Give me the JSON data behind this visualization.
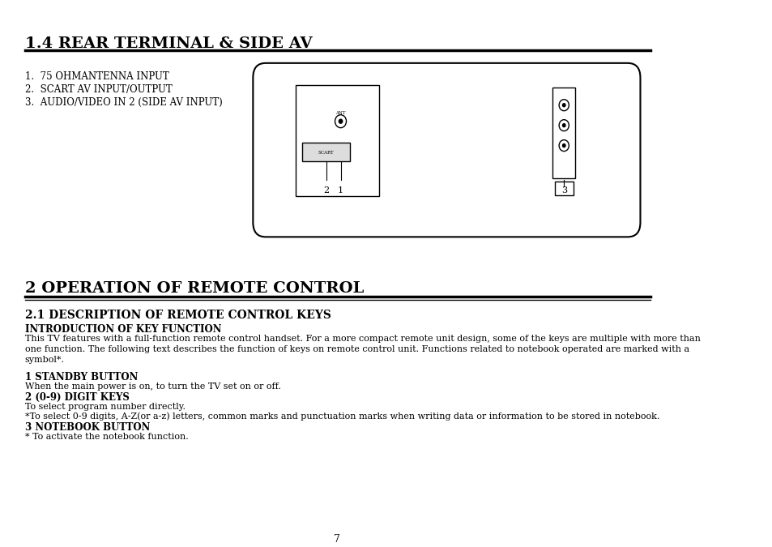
{
  "bg_color": "#ffffff",
  "section1_title": "1.4 REAR TERMINAL & SIDE AV",
  "section1_items": [
    "1.  75 OHMANTENNA INPUT",
    "2.  SCART AV INPUT/OUTPUT",
    "3.  AUDIO/VIDEO IN 2 (SIDE AV INPUT)"
  ],
  "section2_title": "2 OPERATION OF REMOTE CONTROL",
  "subsection2_1": "2.1 DESCRIPTION OF REMOTE CONTROL KEYS",
  "intro_bold": "INTRODUCTION OF KEY FUNCTION",
  "intro_text_1": "This TV features with a full-function remote control handset. For a more compact remote unit design, some of the keys are multiple with more than",
  "intro_text_2": "one function. The following text describes the function of keys on remote control unit. Functions related to notebook operated are marked with a",
  "intro_text_3": "symbol*.",
  "standby_bold": "1 STANDBY BUTTON",
  "standby_text": "When the main power is on, to turn the TV set on or off.",
  "digit_bold": "2 (0-9) DIGIT KEYS",
  "digit_text_1": "To select program number directly.",
  "digit_text_2": "*To select 0-9 digits, A-Z(or a-z) letters, common marks and punctuation marks when writing data or information to be stored in notebook.",
  "notebook_bold": "3 NOTEBOOK BUTTON",
  "notebook_text": "* To activate the notebook function.",
  "page_number": "7"
}
